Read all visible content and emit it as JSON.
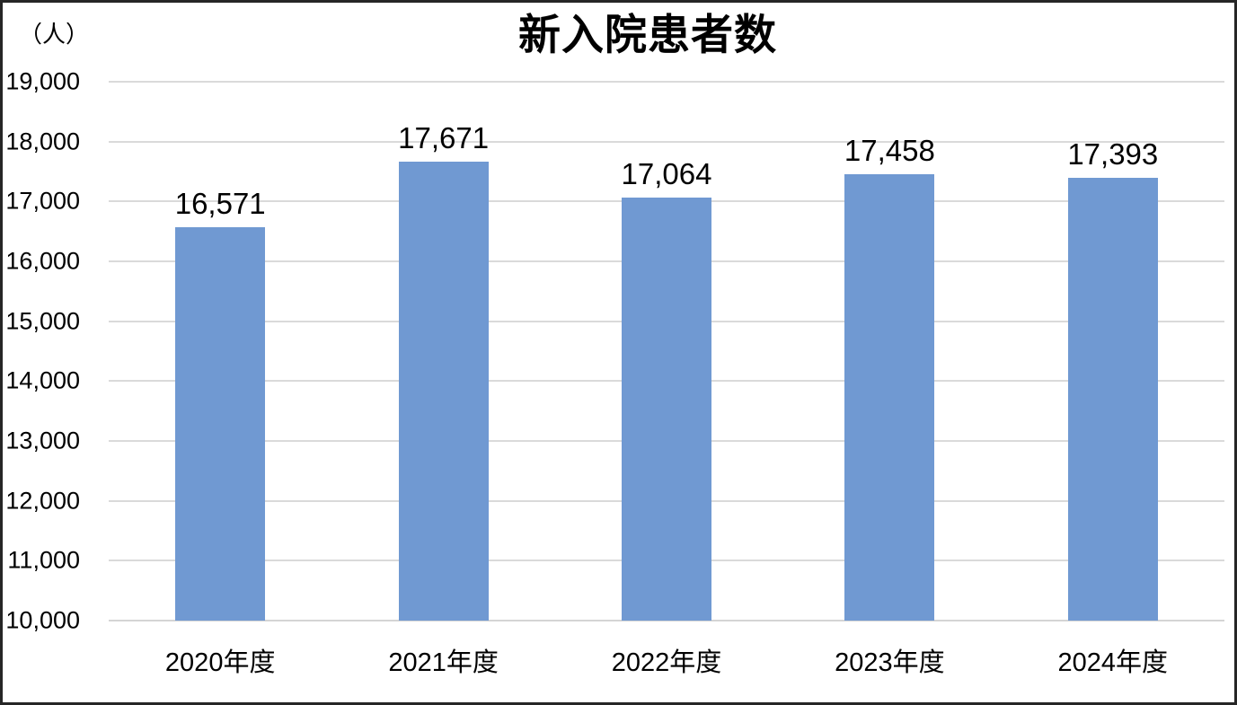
{
  "chart_data": {
    "type": "bar",
    "title": "新入院患者数",
    "unit_label": "（人）",
    "categories": [
      "2020年度",
      "2021年度",
      "2022年度",
      "2023年度",
      "2024年度"
    ],
    "values": [
      16571,
      17671,
      17064,
      17458,
      17393
    ],
    "value_labels": [
      "16,571",
      "17,671",
      "17,064",
      "17,458",
      "17,393"
    ],
    "ylim": [
      10000,
      19000
    ],
    "ytick_step": 1000,
    "ytick_labels": [
      "10,000",
      "11,000",
      "12,000",
      "13,000",
      "14,000",
      "15,000",
      "16,000",
      "17,000",
      "18,000",
      "19,000"
    ],
    "grid": true,
    "legend": "none",
    "xlabel": "",
    "ylabel": "",
    "bar_color": "#7099D2",
    "gridline_color": "#DADADA",
    "axis_line_color": "#D4D4D4",
    "text_color": "#000000",
    "background_color": "#FFFFFF",
    "border_color": "#262626"
  }
}
